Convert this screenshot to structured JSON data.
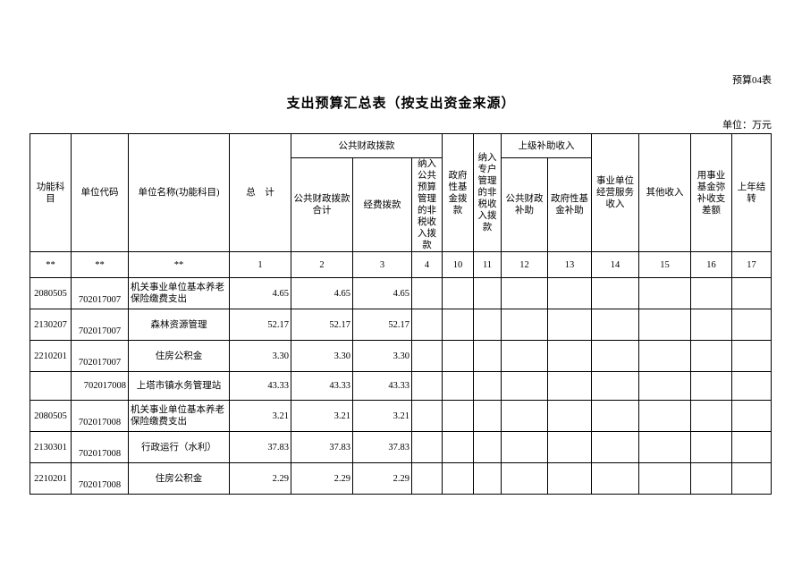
{
  "form_number": "预算04表",
  "title": "支出预算汇总表（按支出资金来源）",
  "unit_label": "单位：万元",
  "headers": {
    "func_subject": "功能科目",
    "unit_code": "单位代码",
    "unit_name": "单位名称(功能科目)",
    "total": "总　计",
    "public_finance": "公共财政拨款",
    "public_finance_total": "公共财政拨款合计",
    "funding": "经费拨款",
    "non_tax_in_budget": "纳入公共预算管理的非税收入拨款",
    "gov_fund": "政府性基金拨款",
    "special_account": "纳入专户管理的非税收入拨款",
    "superior_subsidy": "上级补助收入",
    "public_finance_subsidy": "公共财政补助",
    "gov_fund_subsidy": "政府性基金补助",
    "business_income": "事业单位经营服务收入",
    "other_income": "其他收入",
    "fund_offset": "用事业基金弥补收支差额",
    "carryover": "上年结转"
  },
  "column_numbers": [
    "**",
    "**",
    "**",
    "1",
    "2",
    "3",
    "4",
    "10",
    "11",
    "12",
    "13",
    "14",
    "15",
    "16",
    "17"
  ],
  "rows": [
    {
      "func": "2080505",
      "code": "702017007",
      "name": "机关事业单位基本养老保险缴费支出",
      "total": "4.65",
      "pf_total": "4.65",
      "funding": "4.65"
    },
    {
      "func": "2130207",
      "code": "702017007",
      "name": "森林资源管理",
      "total": "52.17",
      "pf_total": "52.17",
      "funding": "52.17"
    },
    {
      "func": "2210201",
      "code": "702017007",
      "name": "住房公积金",
      "total": "3.30",
      "pf_total": "3.30",
      "funding": "3.30"
    },
    {
      "func": "",
      "code": "702017008",
      "name": "上塔市镇水务管理站",
      "total": "43.33",
      "pf_total": "43.33",
      "funding": "43.33"
    },
    {
      "func": "2080505",
      "code": "702017008",
      "name": "机关事业单位基本养老保险缴费支出",
      "total": "3.21",
      "pf_total": "3.21",
      "funding": "3.21"
    },
    {
      "func": "2130301",
      "code": "702017008",
      "name": "行政运行（水利）",
      "total": "37.83",
      "pf_total": "37.83",
      "funding": "37.83"
    },
    {
      "func": "2210201",
      "code": "702017008",
      "name": "住房公积金",
      "total": "2.29",
      "pf_total": "2.29",
      "funding": "2.29"
    }
  ]
}
